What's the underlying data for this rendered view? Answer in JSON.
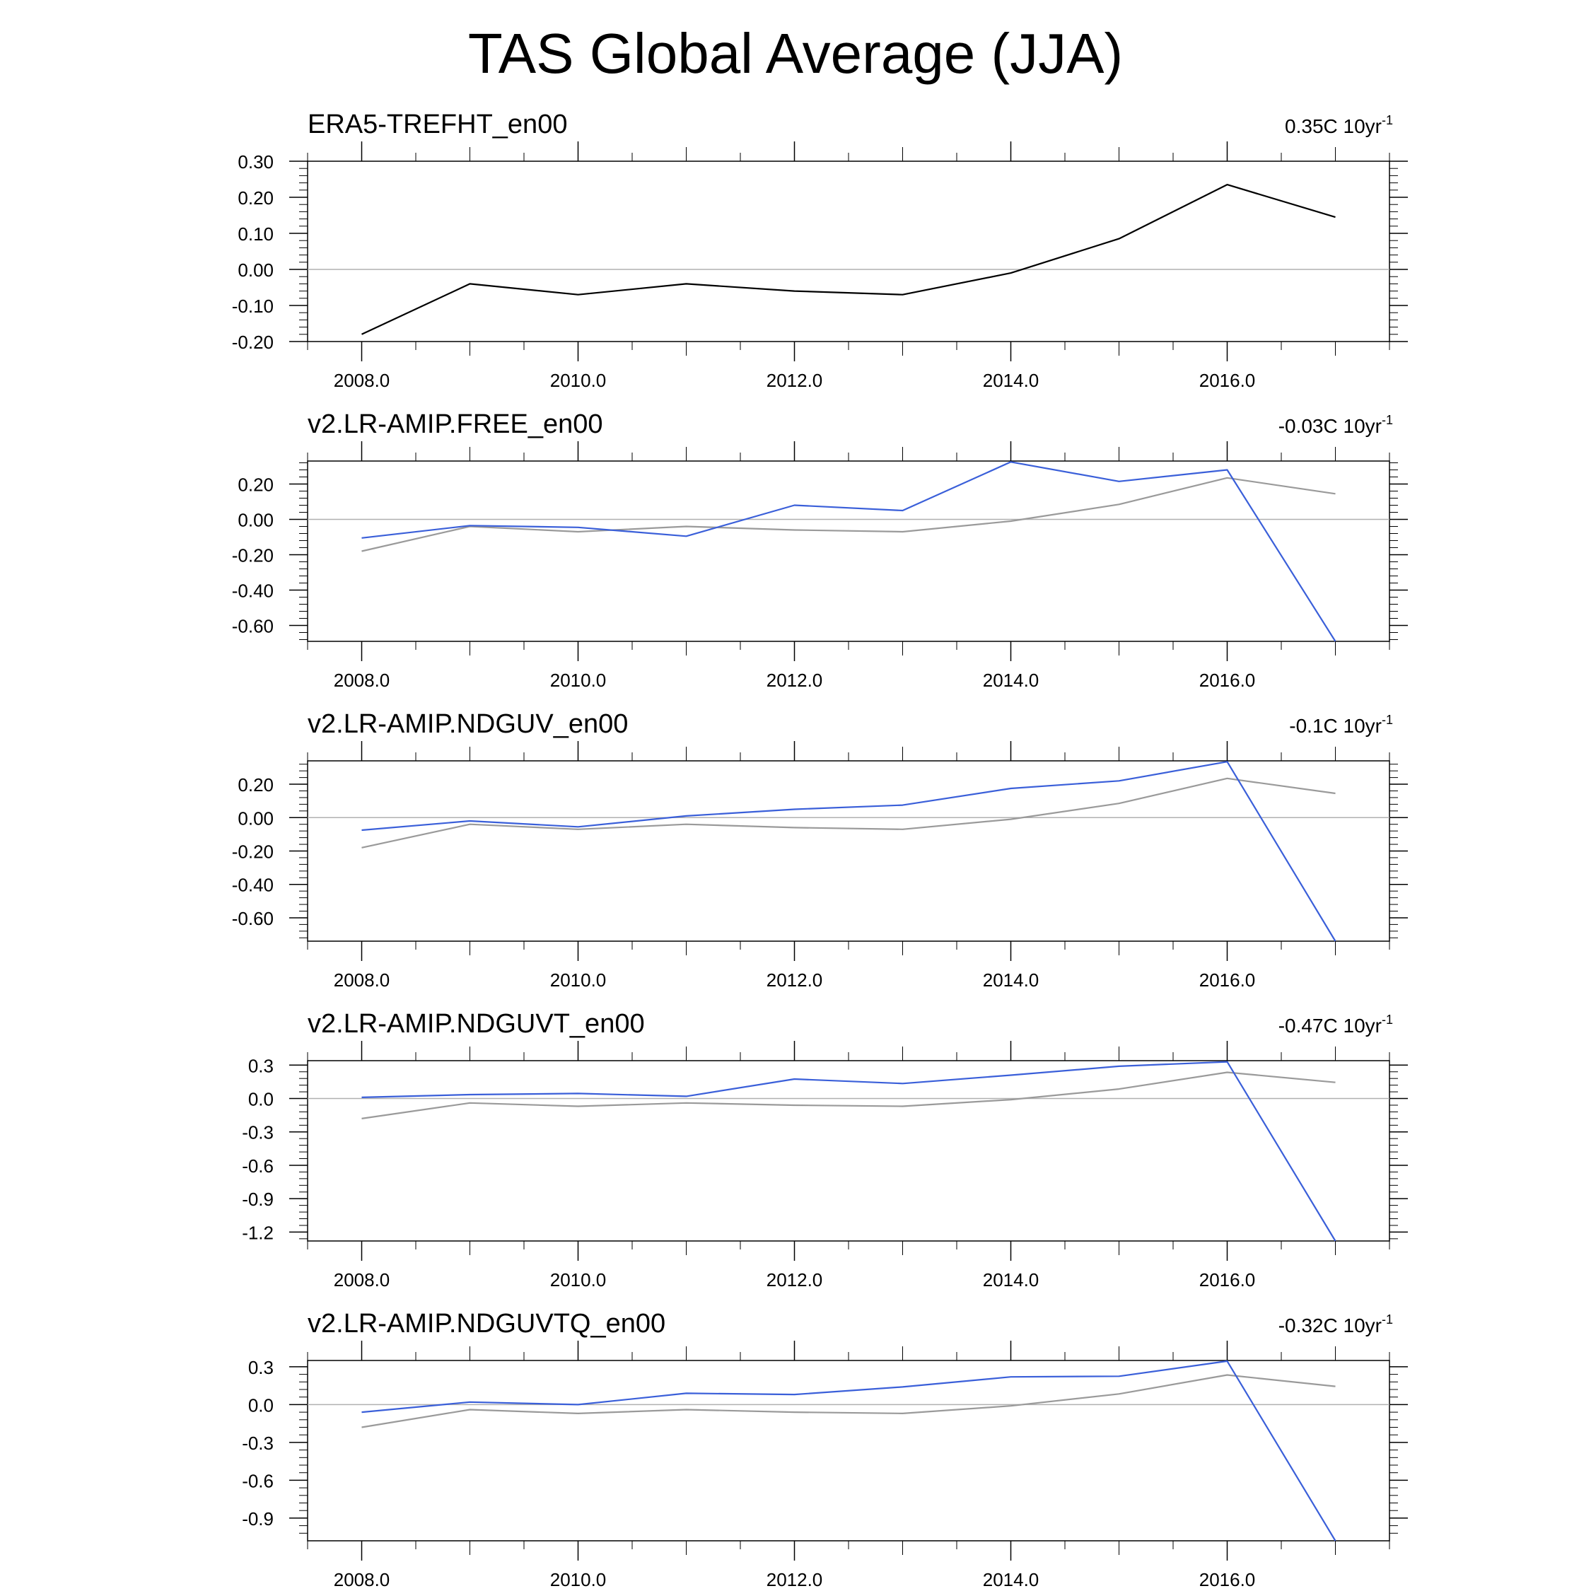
{
  "page": {
    "title": "TAS Global Average (JJA)"
  },
  "colors": {
    "obs": "#000000",
    "obs_ref": "#9a9a9a",
    "model": "#3a5fd9",
    "zero_line": "#b0b0b0",
    "frame": "#000000"
  },
  "chart_data": [
    {
      "type": "line",
      "title": "ERA5-TREFHT_en00",
      "trend_label": "0.35C 10yr",
      "trend_exp": "-1",
      "x": [
        2008,
        2009,
        2010,
        2011,
        2012,
        2013,
        2014,
        2015,
        2016,
        2017
      ],
      "xlim": [
        2007.5,
        2017.5
      ],
      "xticks": [
        "2008.0",
        "2010.0",
        "2012.0",
        "2014.0",
        "2016.0"
      ],
      "xtick_values": [
        2008,
        2010,
        2012,
        2014,
        2016
      ],
      "ylim": [
        -0.2,
        0.3
      ],
      "yticks": [
        "-0.20",
        "-0.10",
        "0.00",
        "0.10",
        "0.20",
        "0.30"
      ],
      "ytick_values": [
        -0.2,
        -0.1,
        0.0,
        0.1,
        0.2,
        0.3
      ],
      "series": [
        {
          "name": "ERA5",
          "role": "obs",
          "values": [
            -0.18,
            -0.04,
            -0.07,
            -0.04,
            -0.06,
            -0.07,
            -0.01,
            0.085,
            0.235,
            0.145
          ]
        }
      ]
    },
    {
      "type": "line",
      "title": "v2.LR-AMIP.FREE_en00",
      "trend_label": "-0.03C 10yr",
      "trend_exp": "-1",
      "x": [
        2008,
        2009,
        2010,
        2011,
        2012,
        2013,
        2014,
        2015,
        2016,
        2017
      ],
      "xlim": [
        2007.5,
        2017.5
      ],
      "xticks": [
        "2008.0",
        "2010.0",
        "2012.0",
        "2014.0",
        "2016.0"
      ],
      "xtick_values": [
        2008,
        2010,
        2012,
        2014,
        2016
      ],
      "ylim": [
        -0.69,
        0.33
      ],
      "yticks": [
        "-0.60",
        "-0.40",
        "-0.20",
        "0.00",
        "0.20"
      ],
      "ytick_values": [
        -0.6,
        -0.4,
        -0.2,
        0.0,
        0.2
      ],
      "series": [
        {
          "name": "ERA5",
          "role": "obs_ref",
          "values": [
            -0.18,
            -0.04,
            -0.07,
            -0.04,
            -0.06,
            -0.07,
            -0.01,
            0.085,
            0.235,
            0.145
          ]
        },
        {
          "name": "v2.LR-AMIP.FREE",
          "role": "model",
          "values": [
            -0.105,
            -0.035,
            -0.045,
            -0.095,
            0.08,
            0.05,
            0.325,
            0.215,
            0.28,
            -0.69
          ]
        }
      ]
    },
    {
      "type": "line",
      "title": "v2.LR-AMIP.NDGUV_en00",
      "trend_label": "-0.1C 10yr",
      "trend_exp": "-1",
      "x": [
        2008,
        2009,
        2010,
        2011,
        2012,
        2013,
        2014,
        2015,
        2016,
        2017
      ],
      "xlim": [
        2007.5,
        2017.5
      ],
      "xticks": [
        "2008.0",
        "2010.0",
        "2012.0",
        "2014.0",
        "2016.0"
      ],
      "xtick_values": [
        2008,
        2010,
        2012,
        2014,
        2016
      ],
      "ylim": [
        -0.74,
        0.34
      ],
      "yticks": [
        "-0.60",
        "-0.40",
        "-0.20",
        "0.00",
        "0.20"
      ],
      "ytick_values": [
        -0.6,
        -0.4,
        -0.2,
        0.0,
        0.2
      ],
      "series": [
        {
          "name": "ERA5",
          "role": "obs_ref",
          "values": [
            -0.18,
            -0.04,
            -0.07,
            -0.04,
            -0.06,
            -0.07,
            -0.01,
            0.085,
            0.235,
            0.145
          ]
        },
        {
          "name": "v2.LR-AMIP.NDGUV",
          "role": "model",
          "values": [
            -0.075,
            -0.02,
            -0.055,
            0.01,
            0.05,
            0.075,
            0.175,
            0.22,
            0.335,
            -0.74
          ]
        }
      ]
    },
    {
      "type": "line",
      "title": "v2.LR-AMIP.NDGUVT_en00",
      "trend_label": "-0.47C 10yr",
      "trend_exp": "-1",
      "x": [
        2008,
        2009,
        2010,
        2011,
        2012,
        2013,
        2014,
        2015,
        2016,
        2017
      ],
      "xlim": [
        2007.5,
        2017.5
      ],
      "xticks": [
        "2008.0",
        "2010.0",
        "2012.0",
        "2014.0",
        "2016.0"
      ],
      "xtick_values": [
        2008,
        2010,
        2012,
        2014,
        2016
      ],
      "ylim": [
        -1.28,
        0.34
      ],
      "yticks": [
        "-1.2",
        "-0.9",
        "-0.6",
        "-0.3",
        "0.0",
        "0.3"
      ],
      "ytick_values": [
        -1.2,
        -0.9,
        -0.6,
        -0.3,
        0.0,
        0.3
      ],
      "series": [
        {
          "name": "ERA5",
          "role": "obs_ref",
          "values": [
            -0.18,
            -0.04,
            -0.07,
            -0.04,
            -0.06,
            -0.07,
            -0.01,
            0.085,
            0.235,
            0.145
          ]
        },
        {
          "name": "v2.LR-AMIP.NDGUVT",
          "role": "model",
          "values": [
            0.01,
            0.035,
            0.045,
            0.02,
            0.175,
            0.135,
            0.21,
            0.29,
            0.33,
            -1.28
          ]
        }
      ]
    },
    {
      "type": "line",
      "title": "v2.LR-AMIP.NDGUVTQ_en00",
      "trend_label": "-0.32C 10yr",
      "trend_exp": "-1",
      "x": [
        2008,
        2009,
        2010,
        2011,
        2012,
        2013,
        2014,
        2015,
        2016,
        2017
      ],
      "xlim": [
        2007.5,
        2017.5
      ],
      "xticks": [
        "2008.0",
        "2010.0",
        "2012.0",
        "2014.0",
        "2016.0"
      ],
      "xtick_values": [
        2008,
        2010,
        2012,
        2014,
        2016
      ],
      "ylim": [
        -1.08,
        0.35
      ],
      "yticks": [
        "-0.9",
        "-0.6",
        "-0.3",
        "0.0",
        "0.3"
      ],
      "ytick_values": [
        -0.9,
        -0.6,
        -0.3,
        0.0,
        0.3
      ],
      "series": [
        {
          "name": "ERA5",
          "role": "obs_ref",
          "values": [
            -0.18,
            -0.04,
            -0.07,
            -0.04,
            -0.06,
            -0.07,
            -0.01,
            0.085,
            0.235,
            0.145
          ]
        },
        {
          "name": "v2.LR-AMIP.NDGUVTQ",
          "role": "model",
          "values": [
            -0.06,
            0.02,
            0.0,
            0.09,
            0.08,
            0.14,
            0.22,
            0.225,
            0.345,
            -1.08
          ]
        }
      ]
    }
  ]
}
